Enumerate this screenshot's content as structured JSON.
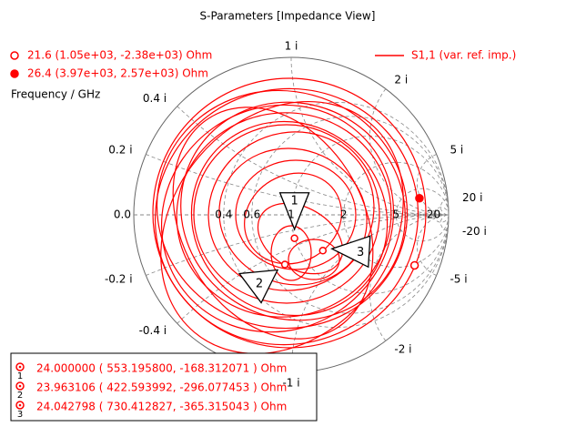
{
  "chart_data": {
    "type": "smith",
    "title": "S-Parameters [Impedance View]",
    "axis_label": "Frequency / GHz",
    "series": [
      {
        "name": "S1,1 (var. ref. imp.)",
        "color": "#ff0000"
      }
    ],
    "rgrid": [
      {
        "value": 0,
        "label": "0.0"
      },
      0.4,
      0.6,
      1,
      2,
      5,
      20
    ],
    "xgrid": [
      {
        "value": 0.2,
        "label": "0.2 i"
      },
      {
        "value": 0.4,
        "label": "0.4 i"
      },
      {
        "value": 1,
        "label": "1 i"
      },
      {
        "value": 2,
        "label": "2 i"
      },
      {
        "value": 5,
        "label": "5 i"
      },
      {
        "value": 20,
        "label": "20 i"
      },
      {
        "value": -20,
        "label": "-20 i"
      },
      {
        "value": -5,
        "label": "-5 i"
      },
      {
        "value": -2,
        "label": "-2 i"
      },
      {
        "value": -1,
        "label": "-1 i"
      },
      {
        "value": -0.2,
        "label": "-0.2 i"
      },
      {
        "value": -0.4,
        "label": "-0.4 i"
      }
    ],
    "cursors": [
      {
        "text": "21.6  (1.05e+03, -2.38e+03) Ohm",
        "re": 1050,
        "im": -2380,
        "filled": false
      },
      {
        "text": "26.4  (3.97e+03, 2.57e+03) Ohm",
        "re": 3970,
        "im": 2570,
        "filled": true
      }
    ],
    "markers": [
      {
        "label": "1",
        "text": "24.000000 ( 553.195800, -168.312071 ) Ohm",
        "re": 553.1958,
        "im": -168.312071
      },
      {
        "label": "2",
        "text": "23.963106 ( 422.593992, -296.077453 ) Ohm",
        "re": 422.593992,
        "im": -296.077453
      },
      {
        "label": "3",
        "text": "24.042798 ( 730.412827, -365.315043 ) Ohm",
        "re": 730.412827,
        "im": -365.315043
      }
    ]
  }
}
